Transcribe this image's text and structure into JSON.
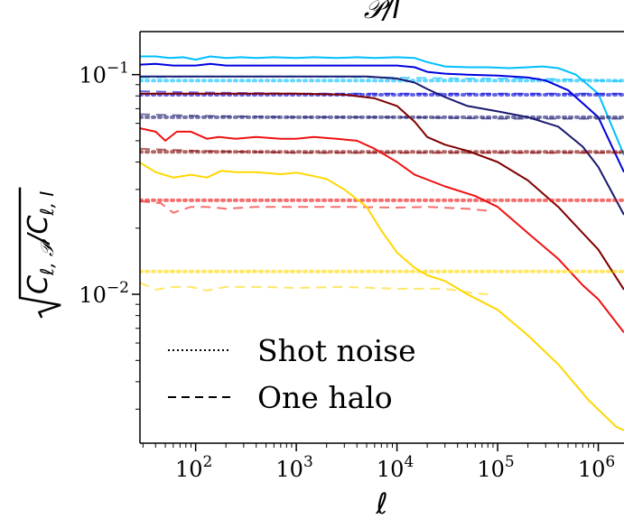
{
  "chart_data": {
    "type": "line",
    "title": "𝒫/I",
    "xlabel": "ℓ",
    "ylabel": "√(C_{ℓ,𝒫}/C_{ℓ,I})",
    "xscale": "log",
    "yscale": "log",
    "xlim": [
      28,
      1800000
    ],
    "ylim": [
      0.0021,
      0.157
    ],
    "xtick_labels": [
      {
        "base": "10",
        "exp": "2",
        "value": 100
      },
      {
        "base": "10",
        "exp": "3",
        "value": 1000
      },
      {
        "base": "10",
        "exp": "4",
        "value": 10000
      },
      {
        "base": "10",
        "exp": "5",
        "value": 100000
      },
      {
        "base": "10",
        "exp": "6",
        "value": 1000000
      }
    ],
    "ytick_labels": [
      {
        "base": "10",
        "exp": "−1",
        "value": 0.1
      },
      {
        "base": "10",
        "exp": "−2",
        "value": 0.01
      }
    ],
    "grid": false,
    "legend": {
      "position": "lower-left",
      "entries": [
        {
          "label": "Shot noise",
          "style": "dotted"
        },
        {
          "label": "One halo",
          "style": "dashed"
        }
      ]
    },
    "series": [
      {
        "color": "#00bfff",
        "total": {
          "x": [
            28,
            40,
            55,
            75,
            100,
            140,
            200,
            280,
            400,
            600,
            1000,
            1500,
            2500,
            4000,
            6000,
            10000,
            15000,
            20000,
            30000,
            50000,
            80000,
            130000,
            200000,
            280000,
            400000,
            600000,
            1000000,
            1800000
          ],
          "y": [
            0.121,
            0.121,
            0.119,
            0.12,
            0.117,
            0.121,
            0.119,
            0.12,
            0.119,
            0.12,
            0.119,
            0.12,
            0.119,
            0.12,
            0.119,
            0.12,
            0.119,
            0.114,
            0.109,
            0.108,
            0.108,
            0.107,
            0.108,
            0.109,
            0.107,
            0.1,
            0.082,
            0.043
          ]
        },
        "one_halo": {
          "x": [
            28,
            100,
            1000,
            10000,
            50000,
            200000,
            600000,
            1000000,
            1800000
          ],
          "y": [
            0.097,
            0.098,
            0.098,
            0.097,
            0.096,
            0.096,
            0.095,
            0.094,
            0.093
          ]
        },
        "shot_noise": 0.094
      },
      {
        "color": "#0000dd",
        "total": {
          "x": [
            28,
            40,
            60,
            100,
            140,
            200,
            300,
            500,
            1000,
            2000,
            5000,
            10000,
            15000,
            20000,
            30000,
            50000,
            100000,
            200000,
            300000,
            500000,
            1000000,
            1800000
          ],
          "y": [
            0.111,
            0.112,
            0.11,
            0.11,
            0.112,
            0.11,
            0.11,
            0.11,
            0.11,
            0.11,
            0.11,
            0.11,
            0.108,
            0.103,
            0.101,
            0.1,
            0.099,
            0.097,
            0.094,
            0.085,
            0.064,
            0.036
          ]
        },
        "one_halo": {
          "x": [
            28,
            100,
            1000,
            10000,
            100000,
            1000000,
            1800000
          ],
          "y": [
            0.084,
            0.083,
            0.082,
            0.082,
            0.082,
            0.082,
            0.082
          ]
        },
        "shot_noise": 0.081
      },
      {
        "color": "#191970",
        "total": {
          "x": [
            28,
            100,
            1000,
            5000,
            10000,
            15000,
            20000,
            30000,
            50000,
            100000,
            200000,
            400000,
            700000,
            1000000,
            1800000
          ],
          "y": [
            0.098,
            0.098,
            0.098,
            0.098,
            0.096,
            0.092,
            0.086,
            0.079,
            0.072,
            0.068,
            0.064,
            0.058,
            0.047,
            0.038,
            0.023
          ]
        },
        "one_halo": {
          "x": [
            28,
            100,
            1000,
            10000,
            100000,
            1000000,
            1800000
          ],
          "y": [
            0.066,
            0.065,
            0.064,
            0.064,
            0.063,
            0.063,
            0.063
          ]
        },
        "shot_noise": 0.064
      },
      {
        "color": "#800000",
        "total": {
          "x": [
            28,
            100,
            1000,
            3000,
            6000,
            10000,
            15000,
            20000,
            30000,
            50000,
            100000,
            200000,
            400000,
            700000,
            1000000,
            1800000
          ],
          "y": [
            0.082,
            0.082,
            0.082,
            0.081,
            0.078,
            0.072,
            0.061,
            0.052,
            0.048,
            0.045,
            0.04,
            0.033,
            0.025,
            0.019,
            0.016,
            0.0105
          ]
        },
        "one_halo": {
          "x": [
            28,
            100,
            1000,
            10000,
            100000,
            1000000,
            1800000
          ],
          "y": [
            0.046,
            0.045,
            0.044,
            0.044,
            0.044,
            0.044,
            0.044
          ]
        },
        "shot_noise": 0.0445
      },
      {
        "color": "#ee1111",
        "total": {
          "x": [
            28,
            40,
            50,
            65,
            90,
            130,
            170,
            250,
            400,
            700,
            1000,
            1500,
            2500,
            4000,
            6000,
            10000,
            15000,
            30000,
            60000,
            100000,
            200000,
            400000,
            700000,
            1000000,
            1800000
          ],
          "y": [
            0.057,
            0.055,
            0.05,
            0.055,
            0.055,
            0.051,
            0.052,
            0.051,
            0.052,
            0.051,
            0.051,
            0.052,
            0.051,
            0.05,
            0.046,
            0.04,
            0.035,
            0.031,
            0.028,
            0.025,
            0.019,
            0.0145,
            0.011,
            0.0095,
            0.0067
          ]
        },
        "one_halo": {
          "x": [
            28,
            45,
            60,
            90,
            130,
            200,
            400,
            1000,
            3000,
            10000,
            20000,
            50000,
            80000
          ],
          "y": [
            0.0265,
            0.026,
            0.0235,
            0.025,
            0.025,
            0.0245,
            0.025,
            0.025,
            0.025,
            0.0248,
            0.025,
            0.0245,
            0.024
          ]
        },
        "shot_noise": 0.0268
      },
      {
        "color": "#ffd700",
        "total": {
          "x": [
            28,
            40,
            60,
            90,
            130,
            180,
            250,
            400,
            700,
            1000,
            1500,
            2000,
            3000,
            5000,
            7000,
            10000,
            15000,
            20000,
            30000,
            50000,
            100000,
            200000,
            400000,
            800000,
            1500000,
            1800000
          ],
          "y": [
            0.0398,
            0.036,
            0.034,
            0.035,
            0.034,
            0.0365,
            0.036,
            0.036,
            0.0352,
            0.0358,
            0.0345,
            0.0335,
            0.03,
            0.025,
            0.0195,
            0.0155,
            0.0132,
            0.0122,
            0.0115,
            0.01,
            0.0085,
            0.0065,
            0.0048,
            0.0033,
            0.0025,
            0.0024
          ]
        },
        "one_halo": {
          "x": [
            28,
            40,
            60,
            90,
            130,
            200,
            400,
            1000,
            3000,
            10000,
            30000,
            60000,
            80000
          ],
          "y": [
            0.0113,
            0.0105,
            0.0108,
            0.0108,
            0.0104,
            0.0108,
            0.0108,
            0.0107,
            0.0108,
            0.0106,
            0.0106,
            0.0101,
            0.01
          ]
        },
        "shot_noise": 0.0127
      }
    ]
  }
}
